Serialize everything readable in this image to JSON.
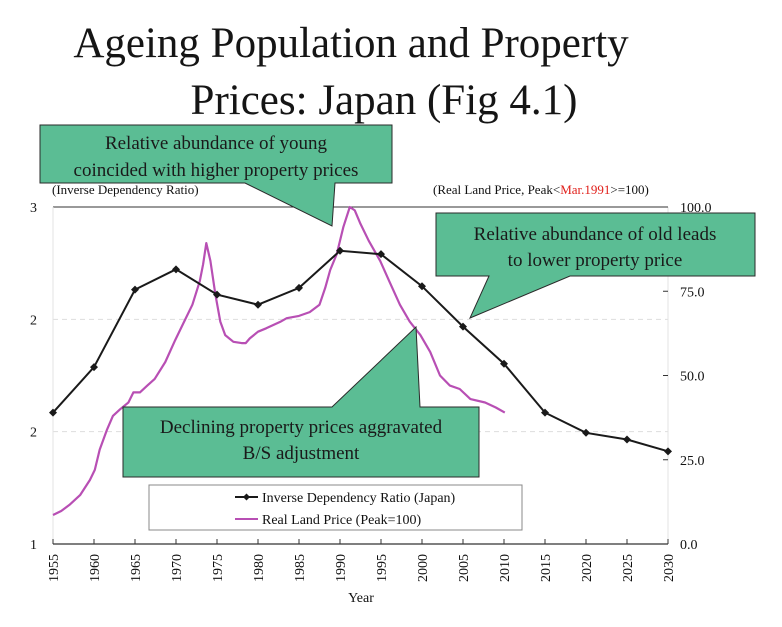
{
  "title": {
    "line1": "Ageing Population and Property",
    "line2": "Prices: Japan (Fig 4.1)"
  },
  "colors": {
    "dependency_line": "#1a1a1a",
    "land_price_line": "#b84fb4",
    "callout_fill": "#5bbd94",
    "callout_stroke": "#2a2a2a",
    "highlight_red": "#e0201b"
  },
  "callouts": [
    {
      "id": "young",
      "lines": [
        "Relative abundance of young",
        "coincided with higher property prices"
      ]
    },
    {
      "id": "old",
      "lines": [
        "Relative abundance of old leads",
        "to lower property price"
      ]
    },
    {
      "id": "declining",
      "lines": [
        "Declining property prices aggravated",
        "B/S adjustment"
      ]
    }
  ],
  "chart_data": {
    "type": "line",
    "title": "Ageing Population and Property Prices: Japan (Fig 4.1)",
    "xlabel": "Year",
    "ylabel_left": "(Inverse Dependency Ratio)",
    "ylabel_right": {
      "prefix": "(Real Land Price, Peak<",
      "highlight": "Mar.1991",
      "suffix": ">=100)"
    },
    "x_range": [
      1955,
      2030
    ],
    "x_ticks": [
      "1955",
      "1960",
      "1965",
      "1970",
      "1975",
      "1980",
      "1985",
      "1990",
      "1995",
      "2000",
      "2005",
      "2010",
      "2015",
      "2020",
      "2025",
      "2030"
    ],
    "y_left_range": [
      1,
      3
    ],
    "y_left_ticks": [
      "3",
      "2",
      "2",
      "1"
    ],
    "y_right_range": [
      0,
      100
    ],
    "y_right_ticks": [
      "100.0",
      "75.0",
      "50.0",
      "25.0",
      "0.0"
    ],
    "grid": "dashed horizontal",
    "legend_position": "bottom-center",
    "series": [
      {
        "name": "Inverse Dependency Ratio (Japan)",
        "axis": "left",
        "marker": "diamond",
        "x": [
          1955,
          1960,
          1965,
          1970,
          1975,
          1980,
          1985,
          1990,
          1995,
          2000,
          2005,
          2010,
          2015,
          2020,
          2025,
          2030
        ],
        "values": [
          1.78,
          2.05,
          2.51,
          2.63,
          2.48,
          2.42,
          2.52,
          2.74,
          2.72,
          2.53,
          2.29,
          2.07,
          1.78,
          1.66,
          1.62,
          1.55
        ]
      },
      {
        "name": "Real Land Price (Peak=100)",
        "axis": "right",
        "marker": "none",
        "x": [
          1955,
          1956,
          1957,
          1958.3,
          1959.5,
          1960.1,
          1960.7,
          1961.6,
          1962.3,
          1963.2,
          1964.2,
          1964.8,
          1965.6,
          1966.5,
          1967.4,
          1968.7,
          1969.9,
          1971.1,
          1972,
          1972.9,
          1973.3,
          1973.7,
          1974.2,
          1974.8,
          1975.4,
          1976,
          1977,
          1978,
          1978.5,
          1979,
          1980,
          1981,
          1982.7,
          1983.5,
          1985,
          1986.3,
          1987.5,
          1988.2,
          1988.8,
          1989.6,
          1990.4,
          1991.2,
          1991.8,
          1992.5,
          1993.5,
          1994.9,
          1996,
          1997.3,
          1998.5,
          1999.8,
          2001,
          2002.2,
          2003.4,
          2004.6,
          2005.9,
          2007.7,
          2009,
          2010.1
        ],
        "values": [
          8.6,
          9.8,
          11.6,
          14.5,
          19,
          22,
          28,
          34,
          38,
          40,
          42,
          45,
          45,
          47,
          49,
          54,
          60.5,
          66.5,
          71,
          78,
          83,
          89.3,
          84,
          74,
          66,
          62,
          60,
          59.6,
          59.6,
          61,
          63,
          64,
          65.9,
          67,
          67.7,
          68.8,
          71,
          76,
          81.3,
          86,
          94,
          100,
          99,
          95,
          90,
          84,
          78,
          71,
          66,
          62,
          57,
          50,
          47,
          46,
          43,
          42,
          40.5,
          39
        ]
      }
    ]
  }
}
